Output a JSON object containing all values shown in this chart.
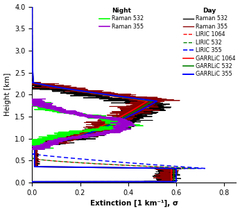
{
  "xlabel": "Extinction [1 km⁻¹], σ",
  "ylabel": "Height [km]",
  "xlim": [
    0,
    0.85
  ],
  "ylim": [
    0,
    4.0
  ],
  "xticks": [
    0,
    0.2,
    0.4,
    0.6,
    0.8
  ],
  "yticks": [
    0,
    0.5,
    1.0,
    1.5,
    2.0,
    2.5,
    3.0,
    3.5,
    4.0
  ],
  "figsize": [
    3.46,
    3.04
  ],
  "dpi": 100,
  "night_raman532_color": "lime",
  "night_raman355_color": "#9900cc",
  "day_raman532_color": "black",
  "day_raman355_color": "#8b0000",
  "liric_1064_color": "red",
  "liric_532_color": "green",
  "liric_355_color": "blue",
  "garrlic_1064_color": "red",
  "garrlic_532_color": "green",
  "garrlic_355_color": "blue"
}
